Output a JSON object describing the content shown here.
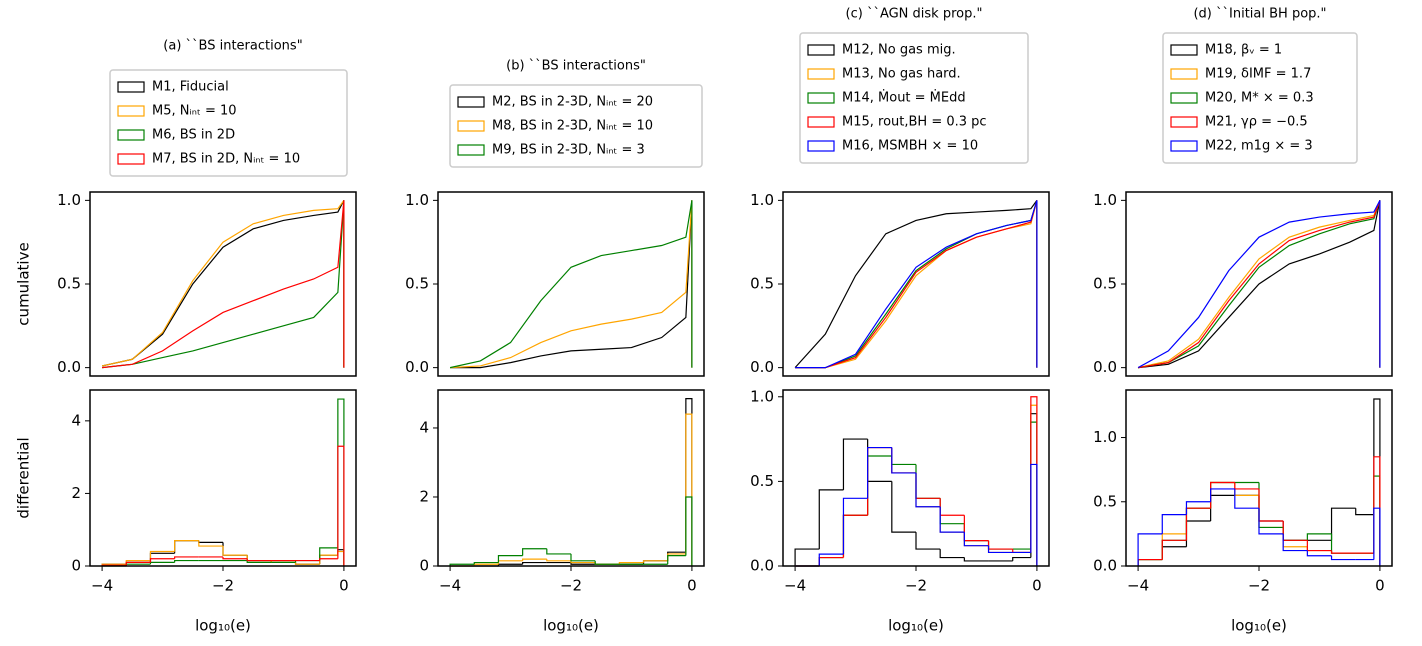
{
  "chart_data": [
    {
      "type": "cumulative",
      "title": "(a) ``BS interactions\"",
      "ylabel": "cumulative",
      "x": [
        -4,
        -3.5,
        -3,
        -2.5,
        -2,
        -1.5,
        -1,
        -0.5,
        -0.1,
        0
      ],
      "series": [
        {
          "name": "M1, Fiducial",
          "color": "#000000",
          "values": [
            0.01,
            0.05,
            0.2,
            0.5,
            0.72,
            0.83,
            0.88,
            0.91,
            0.93,
            1.0
          ]
        },
        {
          "name": "M5, Nᵢₙₜ = 10",
          "color": "#ffa500",
          "values": [
            0.01,
            0.05,
            0.21,
            0.52,
            0.75,
            0.86,
            0.91,
            0.94,
            0.95,
            1.0
          ]
        },
        {
          "name": "M6, BS in 2D",
          "color": "#008000",
          "values": [
            0,
            0.02,
            0.06,
            0.1,
            0.15,
            0.2,
            0.25,
            0.3,
            0.45,
            1.0
          ]
        },
        {
          "name": "M7, BS in 2D, Nᵢₙₜ = 10",
          "color": "#ff0000",
          "values": [
            0,
            0.02,
            0.1,
            0.22,
            0.33,
            0.4,
            0.47,
            0.53,
            0.6,
            1.0
          ]
        }
      ],
      "xlim": [
        -4.2,
        0.2
      ],
      "ylim": [
        -0.05,
        1.05
      ],
      "yticks": [
        {
          "value": 0,
          "label": "0.0"
        },
        {
          "value": 0.5,
          "label": "0.5"
        },
        {
          "value": 1,
          "label": "1.0"
        }
      ]
    },
    {
      "type": "cumulative",
      "title": "(b) ``BS interactions\"",
      "x": [
        -4,
        -3.5,
        -3,
        -2.5,
        -2,
        -1.5,
        -1,
        -0.5,
        -0.1,
        0
      ],
      "series": [
        {
          "name": "M2, BS in 2-3D, Nᵢₙₜ = 20",
          "color": "#000000",
          "values": [
            0,
            0,
            0.03,
            0.07,
            0.1,
            0.11,
            0.12,
            0.18,
            0.3,
            1.0
          ]
        },
        {
          "name": "M8, BS in 2-3D, Nᵢₙₜ = 10",
          "color": "#ffa500",
          "values": [
            0,
            0.01,
            0.06,
            0.15,
            0.22,
            0.26,
            0.29,
            0.33,
            0.45,
            1.0
          ]
        },
        {
          "name": "M9, BS in 2-3D, Nᵢₙₜ = 3",
          "color": "#008000",
          "values": [
            0,
            0.04,
            0.15,
            0.4,
            0.6,
            0.67,
            0.7,
            0.73,
            0.78,
            1.0
          ]
        }
      ],
      "xlim": [
        -4.2,
        0.2
      ],
      "ylim": [
        -0.05,
        1.05
      ],
      "yticks": [
        {
          "value": 0,
          "label": "0.0"
        },
        {
          "value": 0.5,
          "label": "0.5"
        },
        {
          "value": 1,
          "label": "1.0"
        }
      ]
    },
    {
      "type": "cumulative",
      "title": "(c) ``AGN disk prop.\"",
      "x": [
        -4,
        -3.5,
        -3,
        -2.5,
        -2,
        -1.5,
        -1,
        -0.5,
        -0.1,
        0
      ],
      "series": [
        {
          "name": "M12, No gas mig.",
          "color": "#000000",
          "values": [
            0,
            0.2,
            0.55,
            0.8,
            0.88,
            0.92,
            0.93,
            0.94,
            0.95,
            1.0
          ]
        },
        {
          "name": "M13, No gas hard.",
          "color": "#ffa500",
          "values": [
            0,
            0,
            0.05,
            0.28,
            0.55,
            0.7,
            0.78,
            0.83,
            0.86,
            1.0
          ]
        },
        {
          "name": "M14, Ṁout = ṀEdd",
          "color": "#008000",
          "values": [
            0,
            0,
            0.07,
            0.32,
            0.58,
            0.71,
            0.8,
            0.85,
            0.88,
            1.0
          ]
        },
        {
          "name": "M15, rout,BH = 0.3 pc",
          "color": "#ff0000",
          "values": [
            0,
            0,
            0.06,
            0.3,
            0.57,
            0.7,
            0.78,
            0.83,
            0.87,
            1.0
          ]
        },
        {
          "name": "M16, MSMBH × = 10",
          "color": "#0000ff",
          "values": [
            0,
            0,
            0.08,
            0.35,
            0.6,
            0.72,
            0.8,
            0.85,
            0.88,
            1.0
          ]
        }
      ],
      "xlim": [
        -4.2,
        0.2
      ],
      "ylim": [
        -0.05,
        1.05
      ],
      "yticks": [
        {
          "value": 0,
          "label": "0.0"
        },
        {
          "value": 0.5,
          "label": "0.5"
        },
        {
          "value": 1,
          "label": "1.0"
        }
      ]
    },
    {
      "type": "cumulative",
      "title": "(d) ``Initial BH pop.\"",
      "x": [
        -4,
        -3.5,
        -3,
        -2.5,
        -2,
        -1.5,
        -1,
        -0.5,
        -0.1,
        0
      ],
      "series": [
        {
          "name": "M18, βᵥ = 1",
          "color": "#000000",
          "values": [
            0,
            0.02,
            0.1,
            0.3,
            0.5,
            0.62,
            0.68,
            0.75,
            0.82,
            1.0
          ]
        },
        {
          "name": "M19, δIMF = 1.7",
          "color": "#ffa500",
          "values": [
            0,
            0.04,
            0.17,
            0.42,
            0.65,
            0.78,
            0.84,
            0.88,
            0.91,
            1.0
          ]
        },
        {
          "name": "M20, M* × = 0.3",
          "color": "#008000",
          "values": [
            0,
            0.03,
            0.13,
            0.37,
            0.6,
            0.73,
            0.8,
            0.86,
            0.89,
            1.0
          ]
        },
        {
          "name": "M21, γρ = −0.5",
          "color": "#ff0000",
          "values": [
            0,
            0.03,
            0.15,
            0.4,
            0.62,
            0.76,
            0.82,
            0.87,
            0.9,
            1.0
          ]
        },
        {
          "name": "M22, m1g × = 3",
          "color": "#0000ff",
          "values": [
            0,
            0.1,
            0.3,
            0.58,
            0.78,
            0.87,
            0.9,
            0.92,
            0.93,
            1.0
          ]
        }
      ],
      "xlim": [
        -4.2,
        0.2
      ],
      "ylim": [
        -0.05,
        1.05
      ],
      "yticks": [
        {
          "value": 0,
          "label": "0.0"
        },
        {
          "value": 0.5,
          "label": "0.5"
        },
        {
          "value": 1,
          "label": "1.0"
        }
      ]
    },
    {
      "type": "histogram",
      "ylabel": "differential",
      "xlabel": "log₁₀(e)",
      "bins": [
        -4,
        -3.6,
        -3.2,
        -2.8,
        -2.4,
        -2.0,
        -1.6,
        -1.2,
        -0.8,
        -0.4,
        -0.1,
        0
      ],
      "series": [
        {
          "color": "#000000",
          "values": [
            0.05,
            0.1,
            0.35,
            0.7,
            0.65,
            0.3,
            0.15,
            0.1,
            0.05,
            0.3,
            0.45
          ]
        },
        {
          "color": "#ffa500",
          "values": [
            0.05,
            0.15,
            0.4,
            0.7,
            0.55,
            0.3,
            0.15,
            0.1,
            0.05,
            0.3,
            0.4
          ]
        },
        {
          "color": "#008000",
          "values": [
            0,
            0.05,
            0.1,
            0.15,
            0.15,
            0.15,
            0.1,
            0.1,
            0.15,
            0.5,
            4.6
          ]
        },
        {
          "color": "#ff0000",
          "values": [
            0.02,
            0.1,
            0.2,
            0.25,
            0.25,
            0.2,
            0.15,
            0.15,
            0.15,
            0.2,
            3.3
          ]
        }
      ],
      "xlim": [
        -4.2,
        0.2
      ],
      "ylim": [
        0,
        4.85
      ],
      "yticks": [
        0,
        2,
        4
      ],
      "xticks": [
        {
          "value": -4,
          "label": "−4"
        },
        {
          "value": -2,
          "label": "−2"
        },
        0
      ]
    },
    {
      "type": "histogram",
      "xlabel": "log₁₀(e)",
      "bins": [
        -4,
        -3.6,
        -3.2,
        -2.8,
        -2.4,
        -2.0,
        -1.6,
        -1.2,
        -0.8,
        -0.4,
        -0.1,
        0
      ],
      "series": [
        {
          "color": "#000000",
          "values": [
            0,
            0,
            0.05,
            0.1,
            0.1,
            0.05,
            0.05,
            0.05,
            0.15,
            0.4,
            4.85
          ]
        },
        {
          "color": "#ffa500",
          "values": [
            0,
            0.05,
            0.15,
            0.2,
            0.15,
            0.1,
            0.05,
            0.1,
            0.15,
            0.35,
            4.4
          ]
        },
        {
          "color": "#008000",
          "values": [
            0.05,
            0.1,
            0.3,
            0.5,
            0.35,
            0.15,
            0.05,
            0.05,
            0.05,
            0.3,
            2.0
          ]
        }
      ],
      "xlim": [
        -4.2,
        0.2
      ],
      "ylim": [
        0,
        5.1
      ],
      "yticks": [
        0,
        2,
        4
      ],
      "xticks": [
        {
          "value": -4,
          "label": "−4"
        },
        {
          "value": -2,
          "label": "−2"
        },
        0
      ]
    },
    {
      "type": "histogram",
      "xlabel": "log₁₀(e)",
      "bins": [
        -4,
        -3.6,
        -3.2,
        -2.8,
        -2.4,
        -2.0,
        -1.6,
        -1.2,
        -0.8,
        -0.4,
        -0.1,
        0
      ],
      "series": [
        {
          "color": "#000000",
          "values": [
            0.1,
            0.45,
            0.75,
            0.5,
            0.2,
            0.1,
            0.05,
            0.03,
            0.03,
            0.05,
            0.9
          ]
        },
        {
          "color": "#ffa500",
          "values": [
            0,
            0.05,
            0.3,
            0.7,
            0.55,
            0.35,
            0.2,
            0.12,
            0.08,
            0.08,
            0.95
          ]
        },
        {
          "color": "#008000",
          "values": [
            0,
            0.05,
            0.3,
            0.65,
            0.6,
            0.4,
            0.25,
            0.15,
            0.1,
            0.1,
            0.85
          ]
        },
        {
          "color": "#ff0000",
          "values": [
            0,
            0.05,
            0.3,
            0.7,
            0.55,
            0.4,
            0.3,
            0.15,
            0.1,
            0.08,
            1.0
          ]
        },
        {
          "color": "#0000ff",
          "values": [
            0,
            0.07,
            0.4,
            0.7,
            0.55,
            0.35,
            0.2,
            0.12,
            0.08,
            0.08,
            0.6
          ]
        }
      ],
      "xlim": [
        -4.2,
        0.2
      ],
      "ylim": [
        0,
        1.04
      ],
      "yticks": [
        {
          "value": 0,
          "label": "0.0"
        },
        {
          "value": 0.5,
          "label": "0.5"
        },
        {
          "value": 1,
          "label": "1.0"
        }
      ],
      "xticks": [
        {
          "value": -4,
          "label": "−4"
        },
        {
          "value": -2,
          "label": "−2"
        },
        0
      ]
    },
    {
      "type": "histogram",
      "xlabel": "log₁₀(e)",
      "bins": [
        -4,
        -3.6,
        -3.2,
        -2.8,
        -2.4,
        -2.0,
        -1.6,
        -1.2,
        -0.8,
        -0.4,
        -0.1,
        0
      ],
      "series": [
        {
          "color": "#000000",
          "values": [
            0.05,
            0.15,
            0.35,
            0.55,
            0.55,
            0.35,
            0.2,
            0.2,
            0.45,
            0.4,
            1.3
          ]
        },
        {
          "color": "#ffa500",
          "values": [
            0.05,
            0.25,
            0.45,
            0.65,
            0.55,
            0.3,
            0.15,
            0.12,
            0.1,
            0.1,
            0.7
          ]
        },
        {
          "color": "#008000",
          "values": [
            0.05,
            0.2,
            0.45,
            0.65,
            0.65,
            0.3,
            0.2,
            0.25,
            0.1,
            0.1,
            0.7
          ]
        },
        {
          "color": "#ff0000",
          "values": [
            0.05,
            0.2,
            0.45,
            0.65,
            0.6,
            0.35,
            0.2,
            0.12,
            0.1,
            0.1,
            0.85
          ]
        },
        {
          "color": "#0000ff",
          "values": [
            0.25,
            0.4,
            0.5,
            0.6,
            0.45,
            0.25,
            0.12,
            0.08,
            0.05,
            0.05,
            0.45
          ]
        }
      ],
      "xlim": [
        -4.2,
        0.2
      ],
      "ylim": [
        0,
        1.37
      ],
      "yticks": [
        {
          "value": 0,
          "label": "0.0"
        },
        {
          "value": 0.5,
          "label": "0.5"
        },
        {
          "value": 1,
          "label": "1.0"
        }
      ],
      "xticks": [
        {
          "value": -4,
          "label": "−4"
        },
        {
          "value": -2,
          "label": "−2"
        },
        0
      ]
    }
  ]
}
